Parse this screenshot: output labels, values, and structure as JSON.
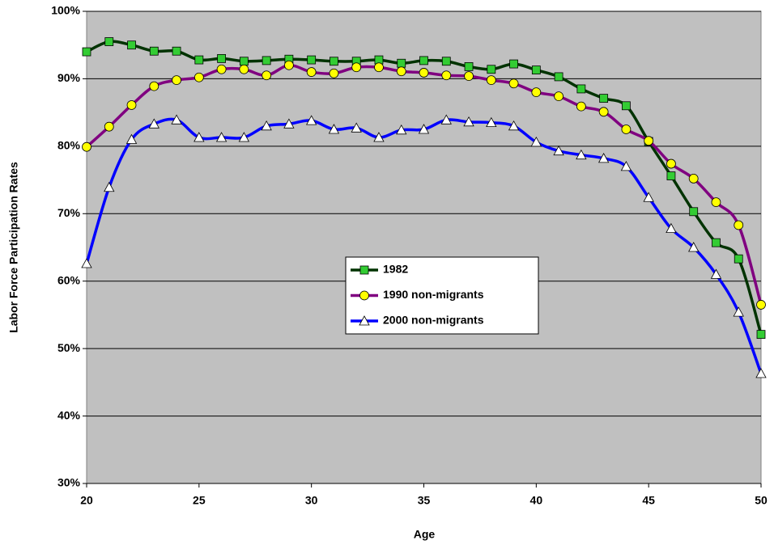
{
  "chart_data": {
    "type": "line",
    "x_label": "Age",
    "y_label": "Labor Force Participation Rates",
    "x": [
      20,
      21,
      22,
      23,
      24,
      25,
      26,
      27,
      28,
      29,
      30,
      31,
      32,
      33,
      34,
      35,
      36,
      37,
      38,
      39,
      40,
      41,
      42,
      43,
      44,
      45,
      46,
      47,
      48,
      49,
      50
    ],
    "xlim": [
      20,
      50
    ],
    "xticks": [
      20,
      25,
      30,
      35,
      40,
      45,
      50
    ],
    "ylim": [
      30,
      100
    ],
    "yticks": [
      {
        "value": 30,
        "label": "30%"
      },
      {
        "value": 40,
        "label": "40%"
      },
      {
        "value": 50,
        "label": "50%"
      },
      {
        "value": 60,
        "label": "60%"
      },
      {
        "value": 70,
        "label": "70%"
      },
      {
        "value": 80,
        "label": "80%"
      },
      {
        "value": 90,
        "label": "90%"
      },
      {
        "value": 100,
        "label": "100%"
      }
    ],
    "grid": true,
    "smooth": true,
    "legend_position": "center",
    "series": [
      {
        "name": "1982",
        "color": "#003300",
        "marker": "square",
        "marker_color": "#33cc33",
        "values": [
          94.0,
          95.5,
          95.0,
          94.1,
          94.1,
          92.8,
          93.0,
          92.6,
          92.7,
          92.9,
          92.8,
          92.6,
          92.6,
          92.8,
          92.3,
          92.7,
          92.6,
          91.8,
          91.4,
          92.2,
          91.3,
          90.3,
          88.5,
          87.1,
          86.0,
          80.7,
          75.6,
          70.3,
          65.7,
          63.3,
          52.1
        ]
      },
      {
        "name": "1990 non-migrants",
        "color": "#800080",
        "marker": "circle",
        "marker_color": "#ffff00",
        "values": [
          79.9,
          82.9,
          86.1,
          88.9,
          89.8,
          90.2,
          91.4,
          91.4,
          90.5,
          92.0,
          91.0,
          90.8,
          91.7,
          91.7,
          91.1,
          90.9,
          90.5,
          90.4,
          89.8,
          89.3,
          88.0,
          87.4,
          85.9,
          85.1,
          82.5,
          80.8,
          77.4,
          75.2,
          71.7,
          68.3,
          56.5
        ]
      },
      {
        "name": "2000 non-migrants",
        "color": "#0000ff",
        "marker": "triangle",
        "marker_color": "#ffffff",
        "values": [
          62.6,
          73.9,
          81.0,
          83.3,
          83.9,
          81.3,
          81.3,
          81.3,
          83.0,
          83.3,
          83.8,
          82.5,
          82.7,
          81.3,
          82.4,
          82.5,
          83.9,
          83.6,
          83.5,
          83.0,
          80.6,
          79.3,
          78.7,
          78.2,
          77.0,
          72.4,
          67.8,
          65.0,
          61.0,
          55.4,
          46.3
        ]
      }
    ]
  }
}
